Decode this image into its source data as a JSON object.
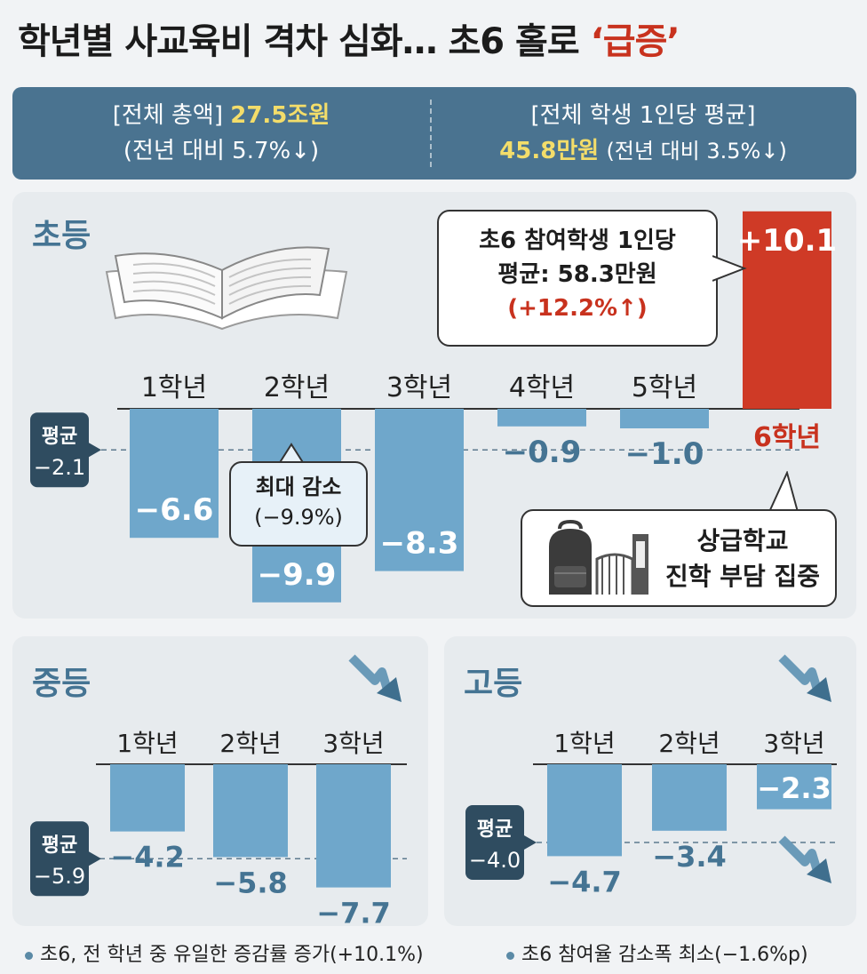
{
  "title": {
    "main": "학년별 사교육비 격차 심화… 초6 홀로",
    "highlight": "‘급증’"
  },
  "summary": {
    "left_line1_label": "[전체 총액]",
    "left_line1_value": "27.5조원",
    "left_line2": "(전년 대비 5.7%↓)",
    "right_line1": "[전체 학생 1인당 평균]",
    "right_line2_value": "45.8만원",
    "right_line2_rest": "(전년 대비 3.5%↓)"
  },
  "colors": {
    "bar": "#6fa7cb",
    "highlight_bar": "#cf3a26",
    "navy": "#2f4c60",
    "accent_text": "#c8321e",
    "section_title": "#457493"
  },
  "chart_data": [
    {
      "type": "bar",
      "section": "초등",
      "categories": [
        "1학년",
        "2학년",
        "3학년",
        "4학년",
        "5학년",
        "6학년"
      ],
      "values": [
        -6.6,
        -9.9,
        -8.3,
        -0.9,
        -1.0,
        10.1
      ],
      "value_labels": [
        "−6.6",
        "−9.9",
        "−8.3",
        "−0.9",
        "−1.0",
        "+10.1"
      ],
      "highlight_index": 5,
      "average": -2.1,
      "average_label": [
        "평균",
        "−2.1"
      ],
      "ylim": [
        -10.6,
        10.8
      ]
    },
    {
      "type": "bar",
      "section": "중등",
      "categories": [
        "1학년",
        "2학년",
        "3학년"
      ],
      "values": [
        -4.2,
        -5.8,
        -7.7
      ],
      "value_labels": [
        "−4.2",
        "−5.8",
        "−7.7"
      ],
      "average": -5.9,
      "average_label": [
        "평균",
        "−5.9"
      ]
    },
    {
      "type": "bar",
      "section": "고등",
      "categories": [
        "1학년",
        "2학년",
        "3학년"
      ],
      "values": [
        -4.7,
        -3.4,
        -2.3
      ],
      "value_labels": [
        "−4.7",
        "−3.4",
        "−2.3"
      ],
      "average": -4.0,
      "average_label": [
        "평균",
        "−4.0"
      ]
    }
  ],
  "callouts": {
    "grade6_lines": [
      "초6 참여학생 1인당",
      "평균: 58.3만원"
    ],
    "grade6_change": "(+12.2%↑)",
    "max_drop_lines": [
      "최대 감소",
      "(−9.9%)"
    ],
    "school_lines": [
      "상급학교",
      "진학 부담 집중"
    ]
  },
  "icons": {
    "book": "open-book-icon",
    "backpack": "backpack-icon",
    "school_gate": "school-gate-icon",
    "trend": "down-trend-arrow-icon"
  },
  "footnotes": [
    "초6, 전 학년 중 유일한 증감률 증가(+10.1%)",
    "초6 참여율 감소폭 최소(−1.6%p)"
  ]
}
